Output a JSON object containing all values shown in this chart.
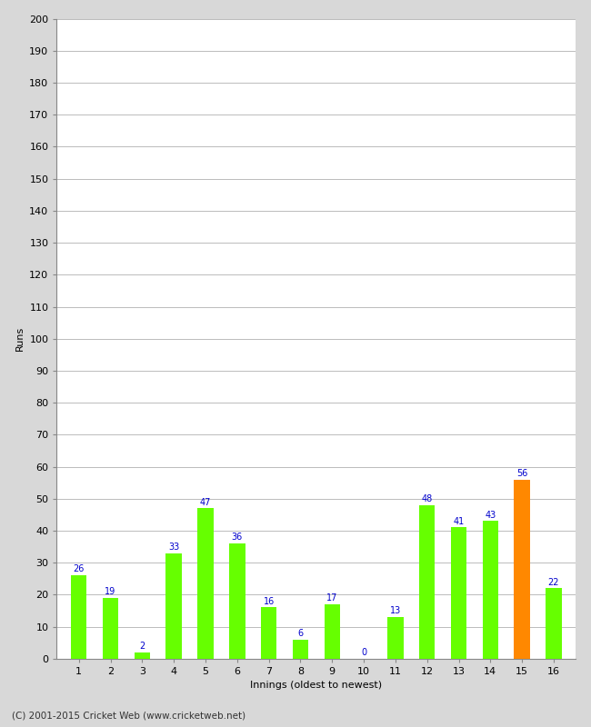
{
  "xlabel": "Innings (oldest to newest)",
  "ylabel": "Runs",
  "categories": [
    1,
    2,
    3,
    4,
    5,
    6,
    7,
    8,
    9,
    10,
    11,
    12,
    13,
    14,
    15,
    16
  ],
  "values": [
    26,
    19,
    2,
    33,
    47,
    36,
    16,
    6,
    17,
    0,
    13,
    48,
    41,
    43,
    56,
    22
  ],
  "bar_colors": [
    "#66ff00",
    "#66ff00",
    "#66ff00",
    "#66ff00",
    "#66ff00",
    "#66ff00",
    "#66ff00",
    "#66ff00",
    "#66ff00",
    "#66ff00",
    "#66ff00",
    "#66ff00",
    "#66ff00",
    "#66ff00",
    "#ff8800",
    "#66ff00"
  ],
  "ylim": [
    0,
    200
  ],
  "yticks": [
    0,
    10,
    20,
    30,
    40,
    50,
    60,
    70,
    80,
    90,
    100,
    110,
    120,
    130,
    140,
    150,
    160,
    170,
    180,
    190,
    200
  ],
  "label_color": "#0000cc",
  "label_fontsize": 7,
  "axis_fontsize": 8,
  "footer": "(C) 2001-2015 Cricket Web (www.cricketweb.net)",
  "plot_bg_color": "#ffffff",
  "fig_bg_color": "#d8d8d8",
  "grid_color": "#bbbbbb",
  "bar_width": 0.5,
  "spine_color": "#888888"
}
